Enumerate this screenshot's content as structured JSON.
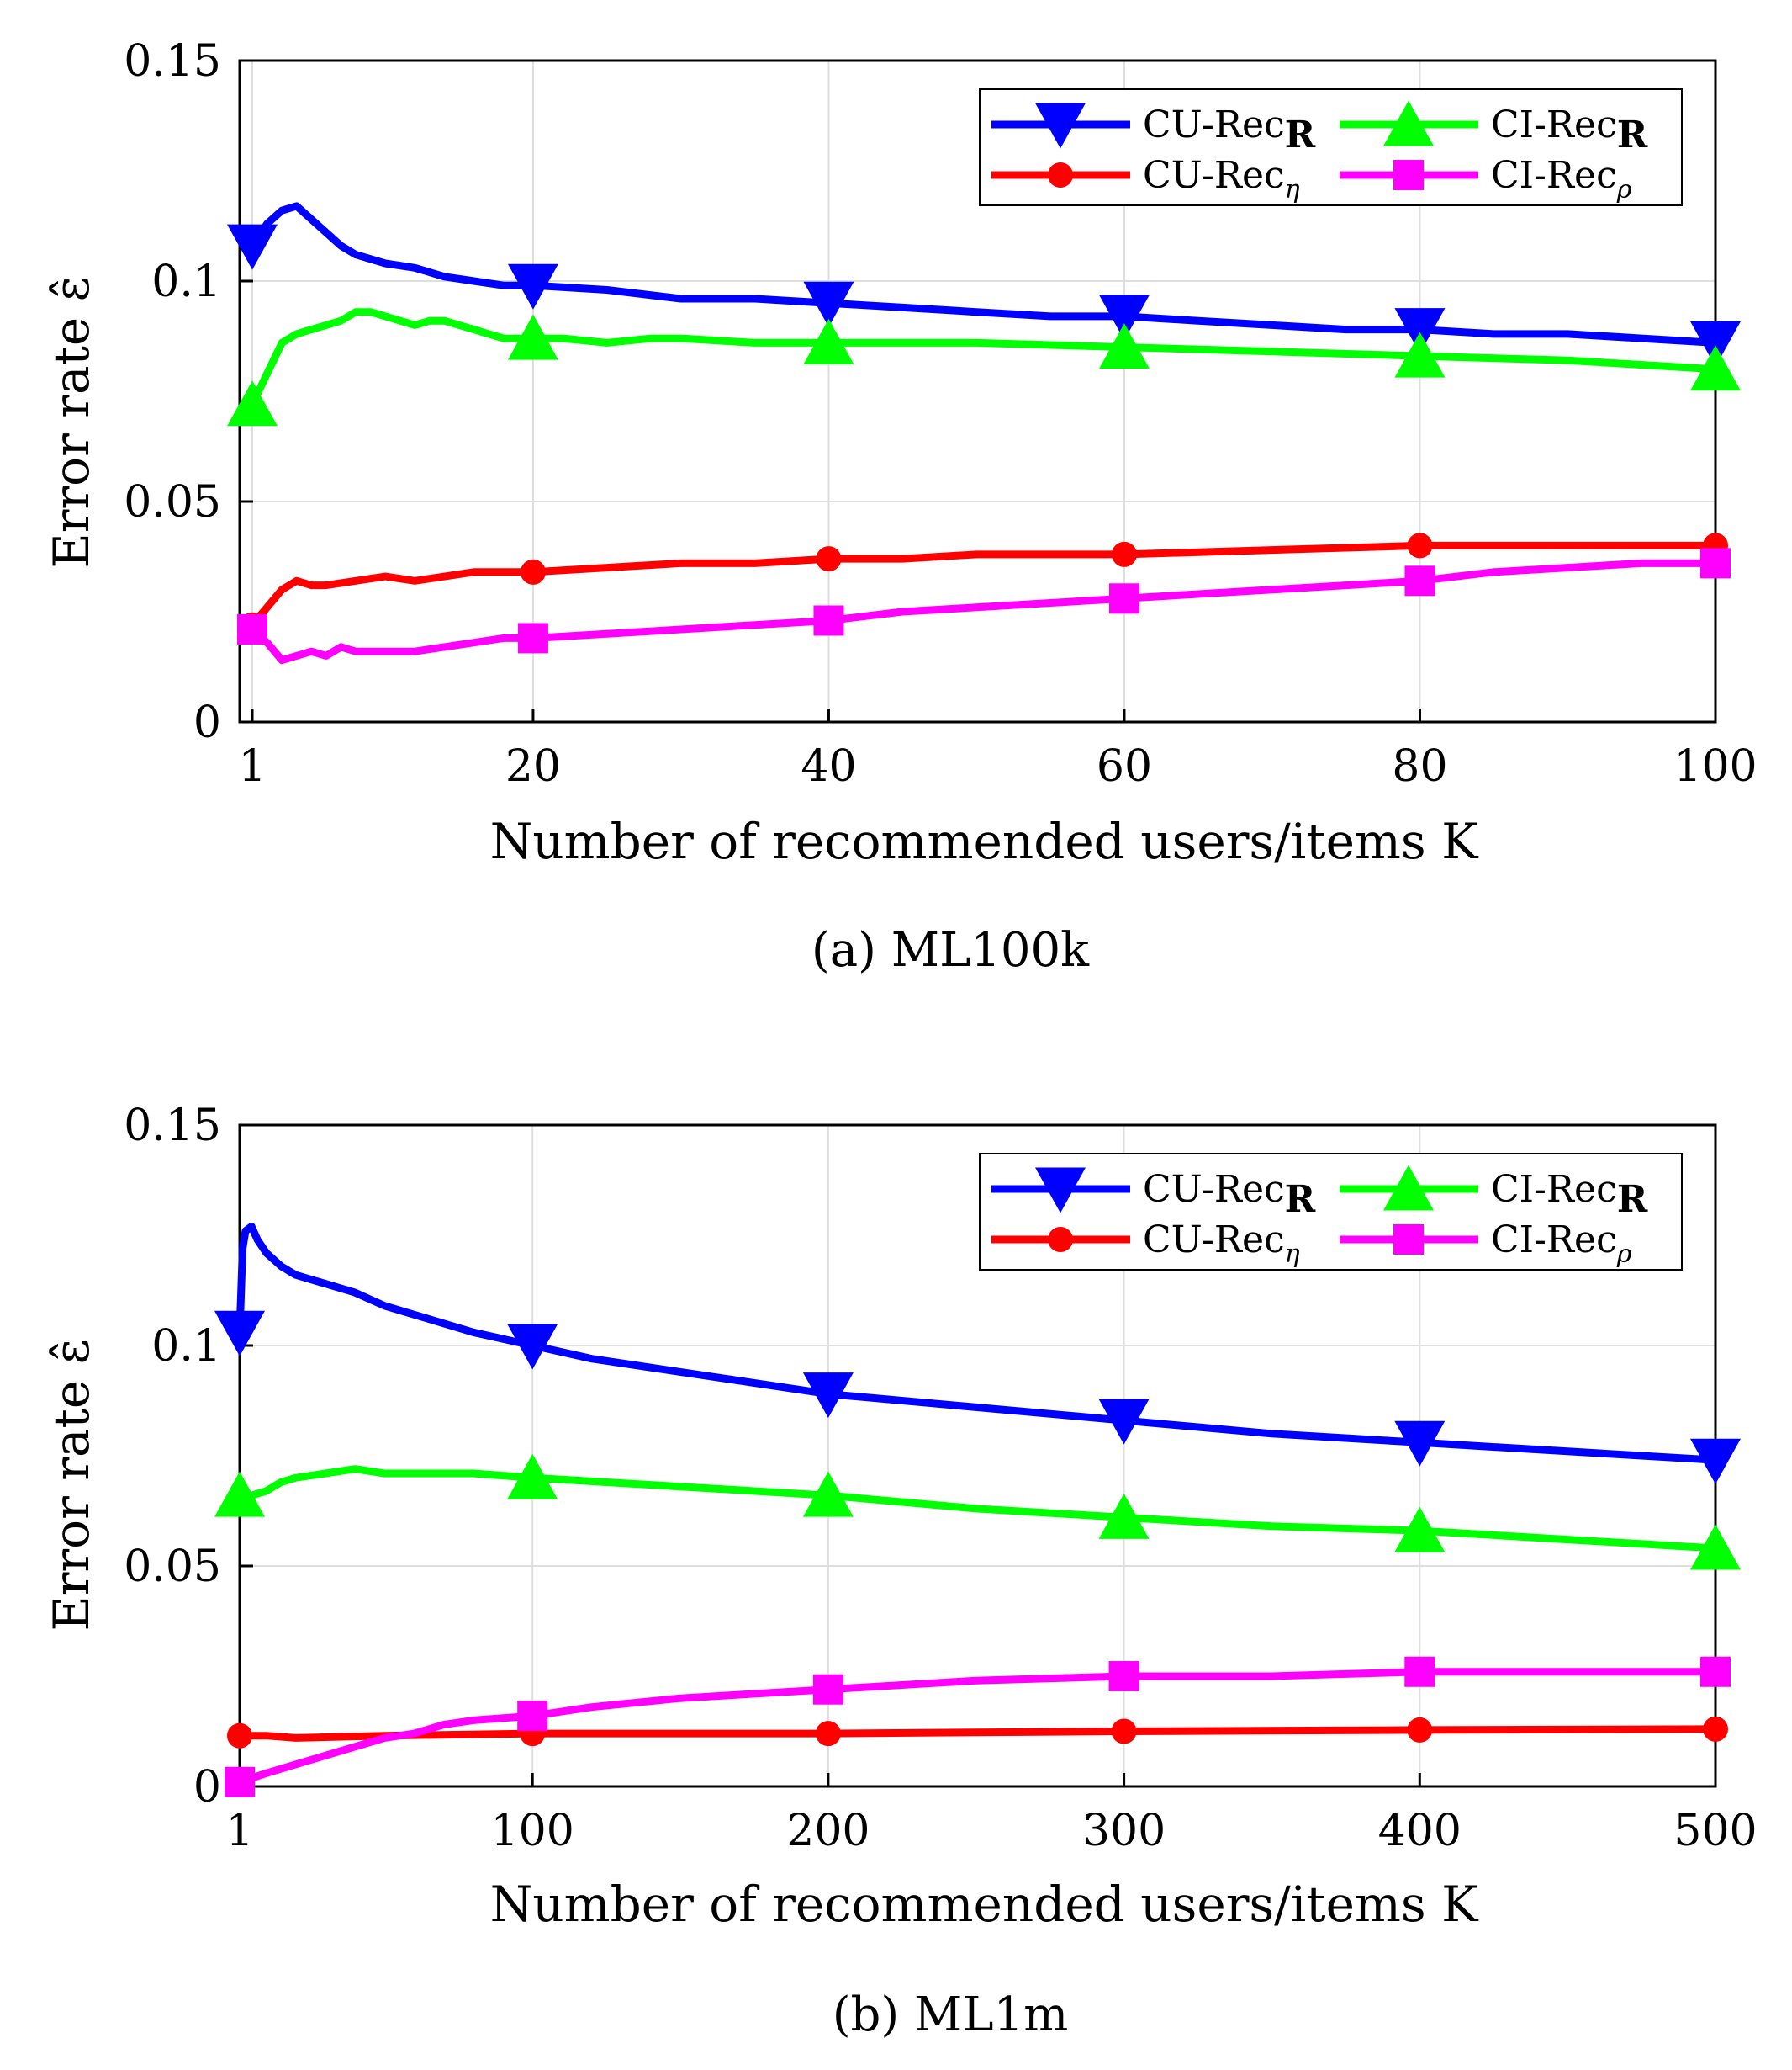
{
  "chart_data": [
    {
      "type": "line",
      "caption": "(a)  ML100k",
      "xlabel": "Number of recommended users/items K",
      "ylabel": "Error rate ε̂",
      "xlim": [
        0,
        100
      ],
      "ylim": [
        0,
        0.15
      ],
      "xticks": [
        1,
        20,
        40,
        60,
        80,
        100
      ],
      "yticks": [
        0,
        0.05,
        0.1,
        0.15
      ],
      "ytick_labels": [
        "0",
        "0.05",
        "0.1",
        "0.15"
      ],
      "grid": true,
      "legend_position": "top-right",
      "series": [
        {
          "name": "CU-Rec",
          "sub": "R",
          "color": "#0000ff",
          "marker": "triangle-down",
          "x": [
            1,
            2,
            3,
            4,
            5,
            6,
            7,
            8,
            10,
            12,
            14,
            16,
            18,
            20,
            25,
            30,
            35,
            40,
            45,
            50,
            55,
            60,
            65,
            70,
            75,
            80,
            85,
            90,
            95,
            100
          ],
          "y": [
            0.108,
            0.113,
            0.116,
            0.117,
            0.114,
            0.111,
            0.108,
            0.106,
            0.104,
            0.103,
            0.101,
            0.1,
            0.099,
            0.099,
            0.098,
            0.096,
            0.096,
            0.095,
            0.094,
            0.093,
            0.092,
            0.092,
            0.091,
            0.09,
            0.089,
            0.089,
            0.088,
            0.088,
            0.087,
            0.086
          ],
          "marker_x": [
            1,
            20,
            40,
            60,
            80,
            100
          ]
        },
        {
          "name": "CI-Rec",
          "sub": "R",
          "color": "#00ff00",
          "marker": "triangle-up",
          "x": [
            1,
            2,
            3,
            4,
            5,
            6,
            7,
            8,
            9,
            10,
            11,
            12,
            13,
            14,
            15,
            16,
            17,
            18,
            20,
            22,
            25,
            28,
            30,
            35,
            40,
            50,
            60,
            70,
            80,
            90,
            100
          ],
          "y": [
            0.072,
            0.079,
            0.086,
            0.088,
            0.089,
            0.09,
            0.091,
            0.093,
            0.093,
            0.092,
            0.091,
            0.09,
            0.091,
            0.091,
            0.09,
            0.089,
            0.088,
            0.087,
            0.087,
            0.087,
            0.086,
            0.087,
            0.087,
            0.086,
            0.086,
            0.086,
            0.085,
            0.084,
            0.083,
            0.082,
            0.08
          ],
          "marker_x": [
            1,
            20,
            40,
            60,
            80,
            100
          ]
        },
        {
          "name": "CU-Rec",
          "sub": "η",
          "color": "#ff0000",
          "marker": "circle",
          "x": [
            1,
            2,
            3,
            4,
            5,
            6,
            8,
            10,
            12,
            14,
            16,
            18,
            20,
            25,
            30,
            35,
            40,
            45,
            50,
            60,
            70,
            80,
            90,
            100
          ],
          "y": [
            0.022,
            0.026,
            0.03,
            0.032,
            0.031,
            0.031,
            0.032,
            0.033,
            0.032,
            0.033,
            0.034,
            0.034,
            0.034,
            0.035,
            0.036,
            0.036,
            0.037,
            0.037,
            0.038,
            0.038,
            0.039,
            0.04,
            0.04,
            0.04
          ],
          "marker_x": [
            1,
            20,
            40,
            60,
            80,
            100
          ]
        },
        {
          "name": "CI-Rec",
          "sub": "ρ",
          "color": "#ff00ff",
          "marker": "square",
          "x": [
            1,
            2,
            3,
            4,
            5,
            6,
            7,
            8,
            10,
            12,
            14,
            16,
            18,
            20,
            25,
            30,
            35,
            40,
            45,
            50,
            55,
            60,
            65,
            70,
            75,
            80,
            85,
            90,
            95,
            100
          ],
          "y": [
            0.021,
            0.018,
            0.014,
            0.015,
            0.016,
            0.015,
            0.017,
            0.016,
            0.016,
            0.016,
            0.017,
            0.018,
            0.019,
            0.019,
            0.02,
            0.021,
            0.022,
            0.023,
            0.025,
            0.026,
            0.027,
            0.028,
            0.029,
            0.03,
            0.031,
            0.032,
            0.034,
            0.035,
            0.036,
            0.036
          ],
          "marker_x": [
            1,
            20,
            40,
            60,
            80,
            100
          ]
        }
      ]
    },
    {
      "type": "line",
      "caption": "(b)  ML1m",
      "xlabel": "Number of recommended users/items K",
      "ylabel": "Error rate ε̂",
      "xlim": [
        1,
        500
      ],
      "ylim": [
        0,
        0.15
      ],
      "xticks": [
        1,
        100,
        200,
        300,
        400,
        500
      ],
      "yticks": [
        0,
        0.05,
        0.1,
        0.15
      ],
      "ytick_labels": [
        "0",
        "0.05",
        "0.1",
        "0.15"
      ],
      "grid": true,
      "legend_position": "top-right",
      "series": [
        {
          "name": "CU-Rec",
          "sub": "R",
          "color": "#0000ff",
          "marker": "triangle-down",
          "x": [
            1,
            2,
            3,
            5,
            7,
            10,
            15,
            20,
            25,
            30,
            40,
            50,
            60,
            70,
            80,
            100,
            120,
            150,
            200,
            250,
            300,
            350,
            400,
            450,
            500
          ],
          "y": [
            0.103,
            0.122,
            0.126,
            0.127,
            0.124,
            0.121,
            0.118,
            0.116,
            0.115,
            0.114,
            0.112,
            0.109,
            0.107,
            0.105,
            0.103,
            0.1,
            0.097,
            0.094,
            0.089,
            0.086,
            0.083,
            0.08,
            0.078,
            0.076,
            0.074
          ],
          "marker_x": [
            1,
            100,
            200,
            300,
            400,
            500
          ]
        },
        {
          "name": "CI-Rec",
          "sub": "R",
          "color": "#00ff00",
          "marker": "triangle-up",
          "x": [
            1,
            5,
            10,
            15,
            20,
            30,
            40,
            50,
            60,
            80,
            100,
            150,
            200,
            250,
            300,
            350,
            400,
            450,
            500
          ],
          "y": [
            0.066,
            0.066,
            0.067,
            0.069,
            0.07,
            0.071,
            0.072,
            0.071,
            0.071,
            0.071,
            0.07,
            0.068,
            0.066,
            0.063,
            0.061,
            0.059,
            0.058,
            0.056,
            0.054
          ],
          "marker_x": [
            1,
            100,
            200,
            300,
            400,
            500
          ]
        },
        {
          "name": "CU-Rec",
          "sub": "η",
          "color": "#ff0000",
          "marker": "circle",
          "x": [
            1,
            10,
            20,
            50,
            100,
            200,
            300,
            400,
            500
          ],
          "y": [
            0.0115,
            0.0115,
            0.011,
            0.0115,
            0.012,
            0.012,
            0.0125,
            0.0128,
            0.013
          ],
          "marker_x": [
            1,
            100,
            200,
            300,
            400,
            500
          ]
        },
        {
          "name": "CI-Rec",
          "sub": "ρ",
          "color": "#ff00ff",
          "marker": "square",
          "x": [
            1,
            10,
            20,
            30,
            40,
            50,
            60,
            70,
            80,
            100,
            120,
            150,
            200,
            250,
            300,
            350,
            400,
            450,
            500
          ],
          "y": [
            0.001,
            0.003,
            0.005,
            0.007,
            0.009,
            0.011,
            0.012,
            0.014,
            0.015,
            0.016,
            0.018,
            0.02,
            0.022,
            0.024,
            0.025,
            0.025,
            0.026,
            0.026,
            0.026
          ],
          "marker_x": [
            1,
            100,
            200,
            300,
            400,
            500
          ]
        }
      ]
    }
  ]
}
